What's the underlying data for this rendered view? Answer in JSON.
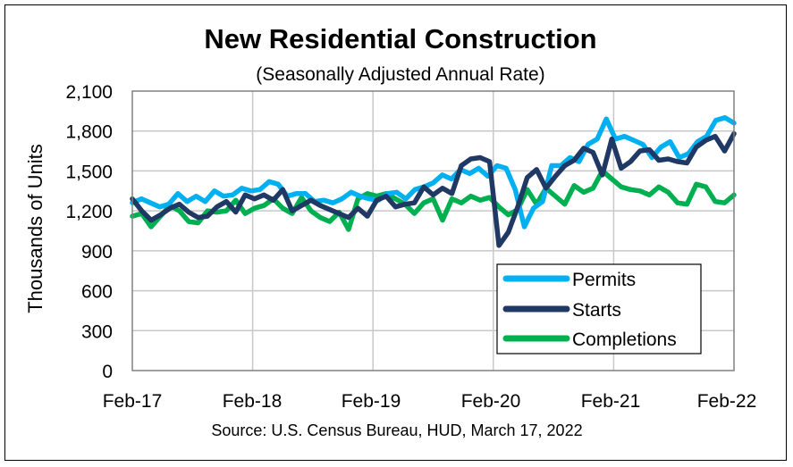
{
  "chart_data": {
    "type": "line",
    "title": "New Residential Construction",
    "subtitle": "(Seasonally Adjusted Annual Rate)",
    "ylabel": "Thousands of Units",
    "xlabel": "",
    "source": "Source:  U.S. Census Bureau, HUD, March 17, 2022",
    "ylim": [
      0,
      2100
    ],
    "yticks": [
      0,
      300,
      600,
      900,
      1200,
      1500,
      1800,
      2100
    ],
    "ytick_labels": [
      "0",
      "300",
      "600",
      "900",
      "1,200",
      "1,500",
      "1,800",
      "2,100"
    ],
    "xtick_labels": [
      "Feb-17",
      "Feb-18",
      "Feb-19",
      "Feb-20",
      "Feb-21",
      "Feb-22"
    ],
    "grid": true,
    "legend_position": "bottom-right",
    "series": [
      {
        "name": "Permits",
        "color": "#00b0f0",
        "values": [
          1260,
          1290,
          1260,
          1230,
          1250,
          1330,
          1270,
          1310,
          1270,
          1350,
          1310,
          1320,
          1370,
          1350,
          1360,
          1420,
          1400,
          1310,
          1330,
          1330,
          1270,
          1280,
          1260,
          1290,
          1340,
          1310,
          1290,
          1280,
          1330,
          1340,
          1290,
          1360,
          1380,
          1410,
          1470,
          1440,
          1510,
          1480,
          1520,
          1460,
          1540,
          1520,
          1360,
          1080,
          1220,
          1270,
          1540,
          1540,
          1600,
          1570,
          1700,
          1740,
          1890,
          1740,
          1760,
          1730,
          1700,
          1600,
          1680,
          1720,
          1600,
          1630,
          1720,
          1760,
          1880,
          1900,
          1860
        ]
      },
      {
        "name": "Starts",
        "color": "#1f3864",
        "values": [
          1290,
          1200,
          1130,
          1170,
          1220,
          1250,
          1190,
          1150,
          1160,
          1230,
          1270,
          1190,
          1320,
          1290,
          1320,
          1280,
          1360,
          1200,
          1240,
          1280,
          1240,
          1210,
          1180,
          1150,
          1220,
          1160,
          1280,
          1310,
          1230,
          1250,
          1260,
          1380,
          1320,
          1370,
          1330,
          1540,
          1590,
          1600,
          1570,
          940,
          1040,
          1230,
          1450,
          1510,
          1370,
          1460,
          1540,
          1580,
          1670,
          1640,
          1470,
          1740,
          1520,
          1570,
          1650,
          1660,
          1580,
          1590,
          1570,
          1560,
          1680,
          1730,
          1760,
          1650,
          1780
        ]
      },
      {
        "name": "Completions",
        "color": "#00b050",
        "values": [
          1160,
          1180,
          1080,
          1160,
          1240,
          1200,
          1120,
          1110,
          1200,
          1190,
          1200,
          1280,
          1180,
          1220,
          1240,
          1290,
          1220,
          1180,
          1300,
          1200,
          1150,
          1120,
          1190,
          1060,
          1290,
          1330,
          1310,
          1330,
          1290,
          1250,
          1180,
          1260,
          1290,
          1130,
          1290,
          1260,
          1310,
          1280,
          1300,
          1230,
          1170,
          1210,
          1360,
          1250,
          1370,
          1310,
          1250,
          1390,
          1340,
          1370,
          1500,
          1440,
          1380,
          1360,
          1350,
          1320,
          1380,
          1340,
          1260,
          1250,
          1400,
          1380,
          1270,
          1260,
          1320
        ]
      }
    ]
  }
}
